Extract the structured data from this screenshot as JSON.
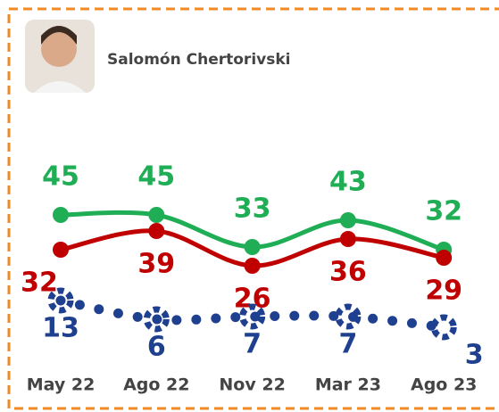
{
  "chart_data": {
    "type": "line",
    "title": "Salomón Chertorivski",
    "categories": [
      "May 22",
      "Ago 22",
      "Nov 22",
      "Mar 23",
      "Ago 23"
    ],
    "series": [
      {
        "color": "#1fae55",
        "values": [
          45,
          45,
          33,
          43,
          32
        ]
      },
      {
        "color": "#c00000",
        "values": [
          32,
          39,
          26,
          36,
          29
        ]
      },
      {
        "color": "#1f3f8f",
        "values": [
          13,
          6,
          7,
          7,
          3
        ]
      }
    ]
  }
}
